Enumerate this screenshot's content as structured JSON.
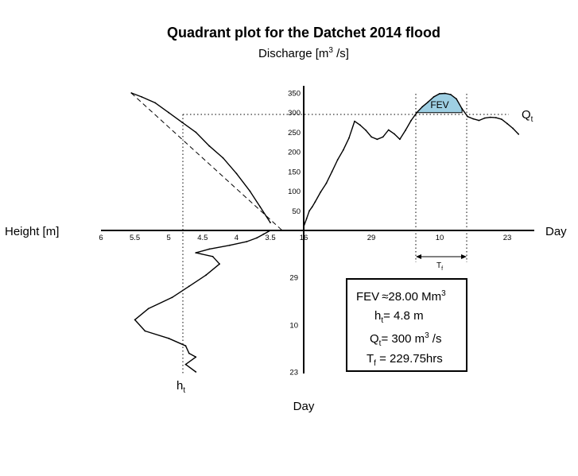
{
  "chart_data": {
    "type": "line",
    "title": "Quadrant plot for the Datchet 2014 flood",
    "subtitle_parts": [
      "Discharge [m",
      "3",
      " /s]"
    ],
    "discharge_label": "Discharge [m3 /s]",
    "height_label": "Height [m]",
    "day_label_right": "Day",
    "day_label_bottom": "Day",
    "qt_label": {
      "main": "Q",
      "sub": "t"
    },
    "ht_label": {
      "main": "h",
      "sub": "t"
    },
    "tf_label": {
      "main": "T",
      "sub": "f"
    },
    "fev_area_label": "FEV",
    "discharge_ticks": [
      "50",
      "100",
      "150",
      "200",
      "250",
      "300",
      "350"
    ],
    "height_ticks": [
      "6",
      "5.5",
      "5",
      "4.5",
      "4",
      "3.5"
    ],
    "day_ticks_right": [
      "16",
      "29",
      "10",
      "23"
    ],
    "day_ticks_bottom": [
      "29",
      "10",
      "23"
    ],
    "discharge_range": [
      0,
      360
    ],
    "height_range": [
      3.0,
      6.0
    ],
    "threshold_discharge": 300,
    "threshold_height": 4.8,
    "fev_fill_color": "#9ecfe3",
    "summary": {
      "fev": {
        "main": "FEV",
        "approx": "≈",
        "value": "28.00 Mm",
        "sup": "3"
      },
      "ht": {
        "main": "h",
        "sub": "t",
        "value": "= 4.8 m"
      },
      "qt": {
        "main": "Q",
        "sub": "t",
        "value": "= 300 m",
        "sup": "3",
        "tail": " /s"
      },
      "tf": {
        "main": "T",
        "sub": "f",
        "value": " = 229.75hrs"
      }
    },
    "series": [
      {
        "name": "",
        "quadrant": "hydrograph",
        "x_unit": "day",
        "x": [
          16,
          16.5,
          17,
          17.5,
          18,
          19,
          20,
          21,
          22,
          23,
          24,
          25,
          26,
          27,
          28,
          29,
          30,
          31,
          32,
          33,
          34,
          35,
          36,
          37,
          38,
          39,
          40,
          41,
          42,
          43,
          44,
          45,
          46,
          47,
          48,
          49,
          50,
          51,
          52,
          53,
          54
        ],
        "y": [
          10,
          30,
          50,
          60,
          72,
          98,
          120,
          150,
          180,
          205,
          235,
          278,
          268,
          255,
          238,
          232,
          238,
          256,
          246,
          232,
          255,
          280,
          300,
          315,
          327,
          340,
          348,
          349,
          346,
          335,
          310,
          290,
          284,
          280,
          286,
          288,
          287,
          283,
          272,
          260,
          245
        ]
      },
      {
        "name": "",
        "quadrant": "rating",
        "x_unit": "m",
        "x": [
          3.5,
          3.65,
          3.8,
          4.0,
          4.2,
          4.4,
          4.6,
          4.8,
          5.0,
          5.2,
          5.4,
          5.55
        ],
        "y": [
          20,
          60,
          100,
          145,
          185,
          215,
          250,
          275,
          300,
          325,
          340,
          350
        ]
      },
      {
        "name": "",
        "quadrant": "stage",
        "x_unit": "m",
        "y_unit": "day",
        "x": [
          3.5,
          3.6,
          3.7,
          3.85,
          4.1,
          4.4,
          4.6,
          4.35,
          4.25,
          4.45,
          4.7,
          4.95,
          5.3,
          5.5,
          5.35,
          5.0,
          4.75,
          4.7,
          4.6,
          4.75,
          4.6
        ],
        "y": [
          16,
          17,
          18,
          19,
          20,
          21,
          22,
          23,
          25,
          28,
          31,
          34,
          37,
          40,
          43,
          45,
          47,
          49,
          50,
          52,
          54
        ]
      }
    ]
  }
}
